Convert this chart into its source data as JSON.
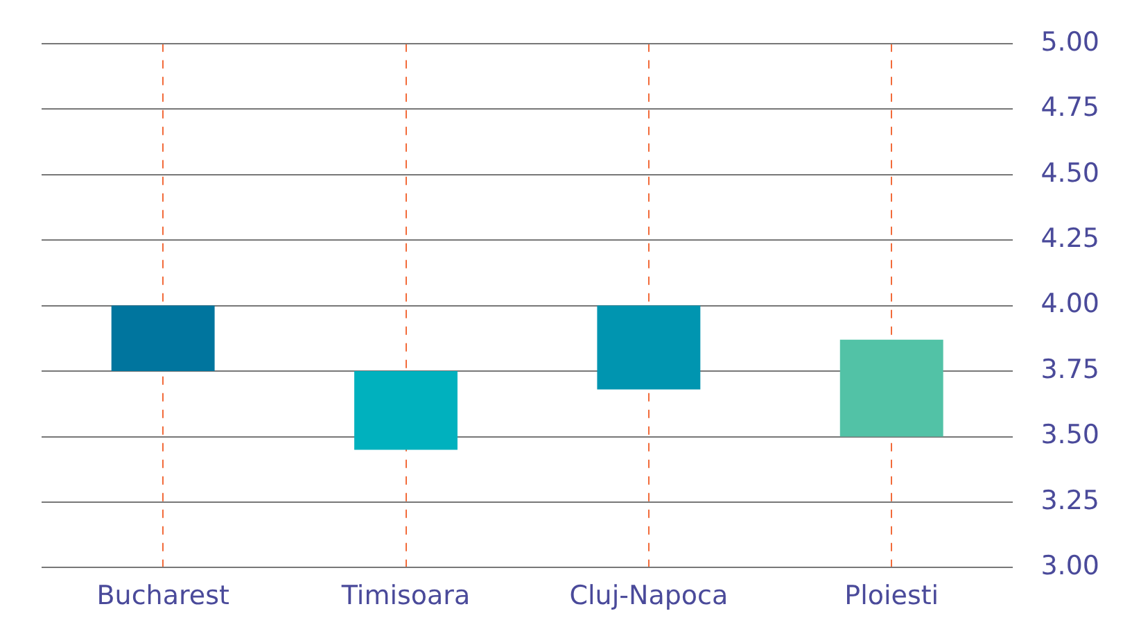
{
  "chart_data": {
    "type": "bar",
    "categories": [
      "Bucharest",
      "Timisoara",
      "Cluj-Napoca",
      "Ploiesti"
    ],
    "base": [
      3.75,
      3.45,
      3.68,
      3.5
    ],
    "values": [
      0.25,
      0.3,
      0.32,
      0.37
    ],
    "colors": [
      "#00759e",
      "#00b1be",
      "#0095b0",
      "#52c2a6"
    ],
    "ylim": [
      3,
      5
    ],
    "yticks": [
      {
        "value": 3,
        "label": "3.00"
      },
      {
        "value": 3.25,
        "label": "3.25"
      },
      {
        "value": 3.5,
        "label": "3.50"
      },
      {
        "value": 3.75,
        "label": "3.75"
      },
      {
        "value": 4,
        "label": "4.00"
      },
      {
        "value": 4.25,
        "label": "4.25"
      },
      {
        "value": 4.5,
        "label": "4.50"
      },
      {
        "value": 4.75,
        "label": "4.75"
      },
      {
        "value": 5,
        "label": "5.00"
      }
    ],
    "grid": true
  }
}
